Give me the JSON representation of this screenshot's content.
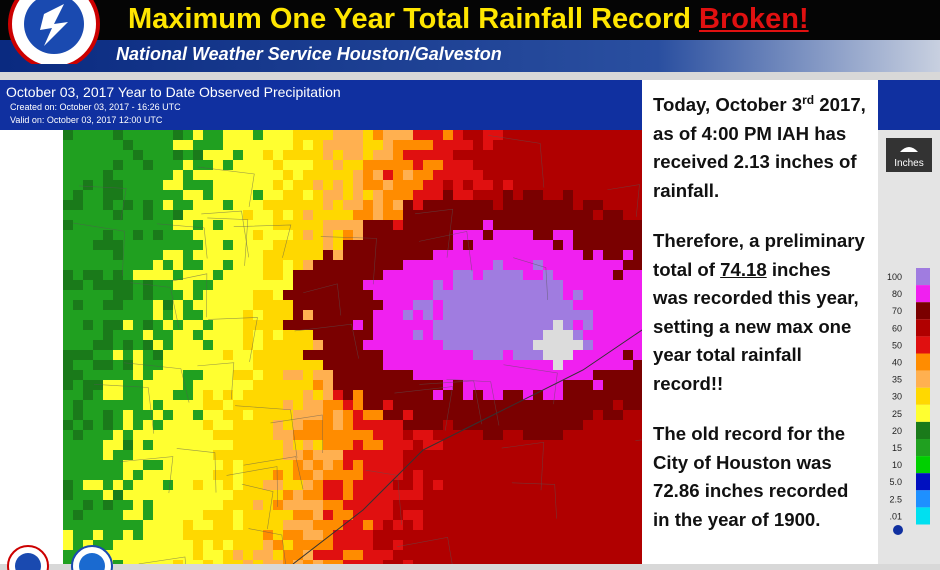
{
  "header": {
    "title": "Maximum One Year Total Rainfall Record",
    "title_emphasis": "Broken!",
    "subtitle": "National Weather Service Houston/Galveston"
  },
  "map": {
    "title": "October 03, 2017 Year to Date Observed Precipitation",
    "created": "Created on: October 03, 2017 - 16:26 UTC",
    "valid": "Valid on: October 03, 2017 12:00 UTC"
  },
  "text": {
    "p1": {
      "a": "Today, October 3",
      "sup": "rd",
      "b": "2017, as of 4:00 PM IAH has received 2.13 inches of rainfall."
    },
    "p2": {
      "a": "Therefore, a preliminary total of",
      "underline": "74.18",
      "b": "inches was recorded this year, setting a new max one year total rainfall record!!"
    },
    "p3": "The old record for the City of Houston was 72.86 inches recorded in the year of 1900."
  },
  "legend": {
    "title": "Inches",
    "items": [
      {
        "label": "100",
        "color": "#a07ce0"
      },
      {
        "label": "80",
        "color": "#f020f0"
      },
      {
        "label": "70",
        "color": "#7a0000"
      },
      {
        "label": "60",
        "color": "#b00000"
      },
      {
        "label": "50",
        "color": "#e01010"
      },
      {
        "label": "40",
        "color": "#ff8c00"
      },
      {
        "label": "35",
        "color": "#ffb050"
      },
      {
        "label": "30",
        "color": "#ffd800"
      },
      {
        "label": "25",
        "color": "#ffff30"
      },
      {
        "label": "20",
        "color": "#1a7a1a"
      },
      {
        "label": "15",
        "color": "#20a020"
      },
      {
        "label": "10",
        "color": "#00d000"
      },
      {
        "label": "5.0",
        "color": "#0010c0"
      },
      {
        "label": "2.5",
        "color": "#1e90ff"
      },
      {
        "label": ".01",
        "color": "#00e0f0"
      }
    ]
  }
}
